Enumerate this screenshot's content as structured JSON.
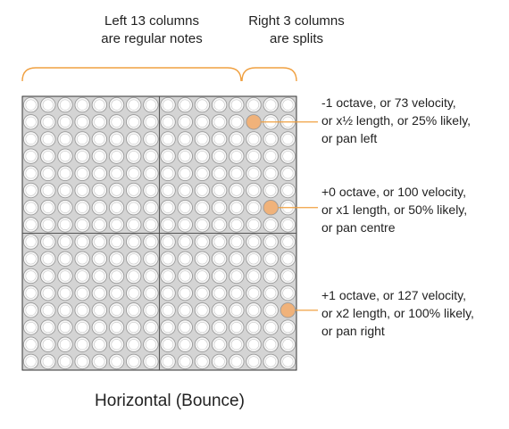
{
  "header": {
    "left_caption": "Left 13 columns\nare regular notes",
    "right_caption": "Right 3 columns\nare splits"
  },
  "grid": {
    "columns": 16,
    "rows": 16,
    "regular_columns": 13,
    "split_columns": 3,
    "highlighted_cells": [
      {
        "row": 2,
        "col": 14
      },
      {
        "row": 7,
        "col": 15
      },
      {
        "row": 13,
        "col": 16
      }
    ],
    "colors": {
      "background": "#d4d4d4",
      "cell_border": "#9a9a9a",
      "highlight": "#f0b27a",
      "brace": "#f0a040",
      "leader": "#f0a040"
    }
  },
  "annotations": [
    {
      "text": "-1 octave, or 73 velocity,\nor x½  length, or 25% likely,\nor pan left"
    },
    {
      "text": "+0 octave, or 100 velocity,\nor x1 length, or 50% likely,\nor pan centre"
    },
    {
      "text": "+1 octave, or 127 velocity,\nor x2 length, or 100% likely,\nor pan right"
    }
  ],
  "footer": {
    "title": "Horizontal (Bounce)"
  }
}
